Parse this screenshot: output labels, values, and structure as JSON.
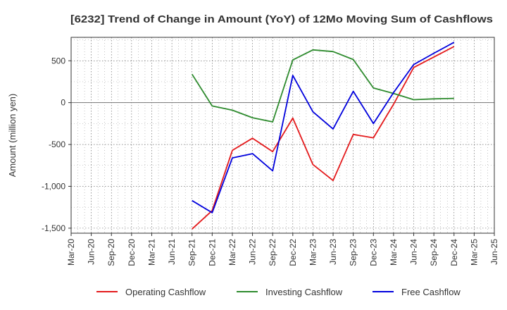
{
  "chart_data": {
    "type": "line",
    "title": "[6232]  Trend of Change in Amount (YoY) of 12Mo Moving Sum of Cashflows",
    "xlabel": "",
    "ylabel": "Amount (million yen)",
    "ylim": [
      -1560,
      780
    ],
    "yticks": [
      500,
      0,
      -500,
      -1000,
      -1500
    ],
    "ytick_labels": [
      "500",
      "0",
      "-500",
      "-1,000",
      "-1,500"
    ],
    "categories": [
      "Mar-20",
      "Jun-20",
      "Sep-20",
      "Dec-20",
      "Mar-21",
      "Jun-21",
      "Sep-21",
      "Dec-21",
      "Mar-22",
      "Jun-22",
      "Sep-22",
      "Dec-22",
      "Mar-23",
      "Jun-23",
      "Sep-23",
      "Dec-23",
      "Mar-24",
      "Jun-24",
      "Sep-24",
      "Dec-24",
      "Mar-25",
      "Jun-25"
    ],
    "legend_position": "bottom",
    "grid": true,
    "series": [
      {
        "name": "Operating Cashflow",
        "color": "#e41a1c",
        "values": [
          null,
          null,
          null,
          null,
          null,
          null,
          -1510,
          -1290,
          -570,
          -425,
          -585,
          -185,
          -740,
          -930,
          -380,
          -420,
          -20,
          420,
          545,
          670,
          null,
          null
        ]
      },
      {
        "name": "Investing Cashflow",
        "color": "#2e8b2e",
        "values": [
          null,
          null,
          null,
          null,
          null,
          null,
          340,
          -40,
          -90,
          -180,
          -230,
          510,
          630,
          610,
          515,
          175,
          110,
          35,
          45,
          50,
          null,
          null
        ]
      },
      {
        "name": "Free Cashflow",
        "color": "#0000dd",
        "values": [
          null,
          null,
          null,
          null,
          null,
          null,
          -1170,
          -1315,
          -660,
          -610,
          -815,
          325,
          -110,
          -315,
          135,
          -250,
          120,
          455,
          590,
          720,
          null,
          null
        ]
      }
    ]
  }
}
